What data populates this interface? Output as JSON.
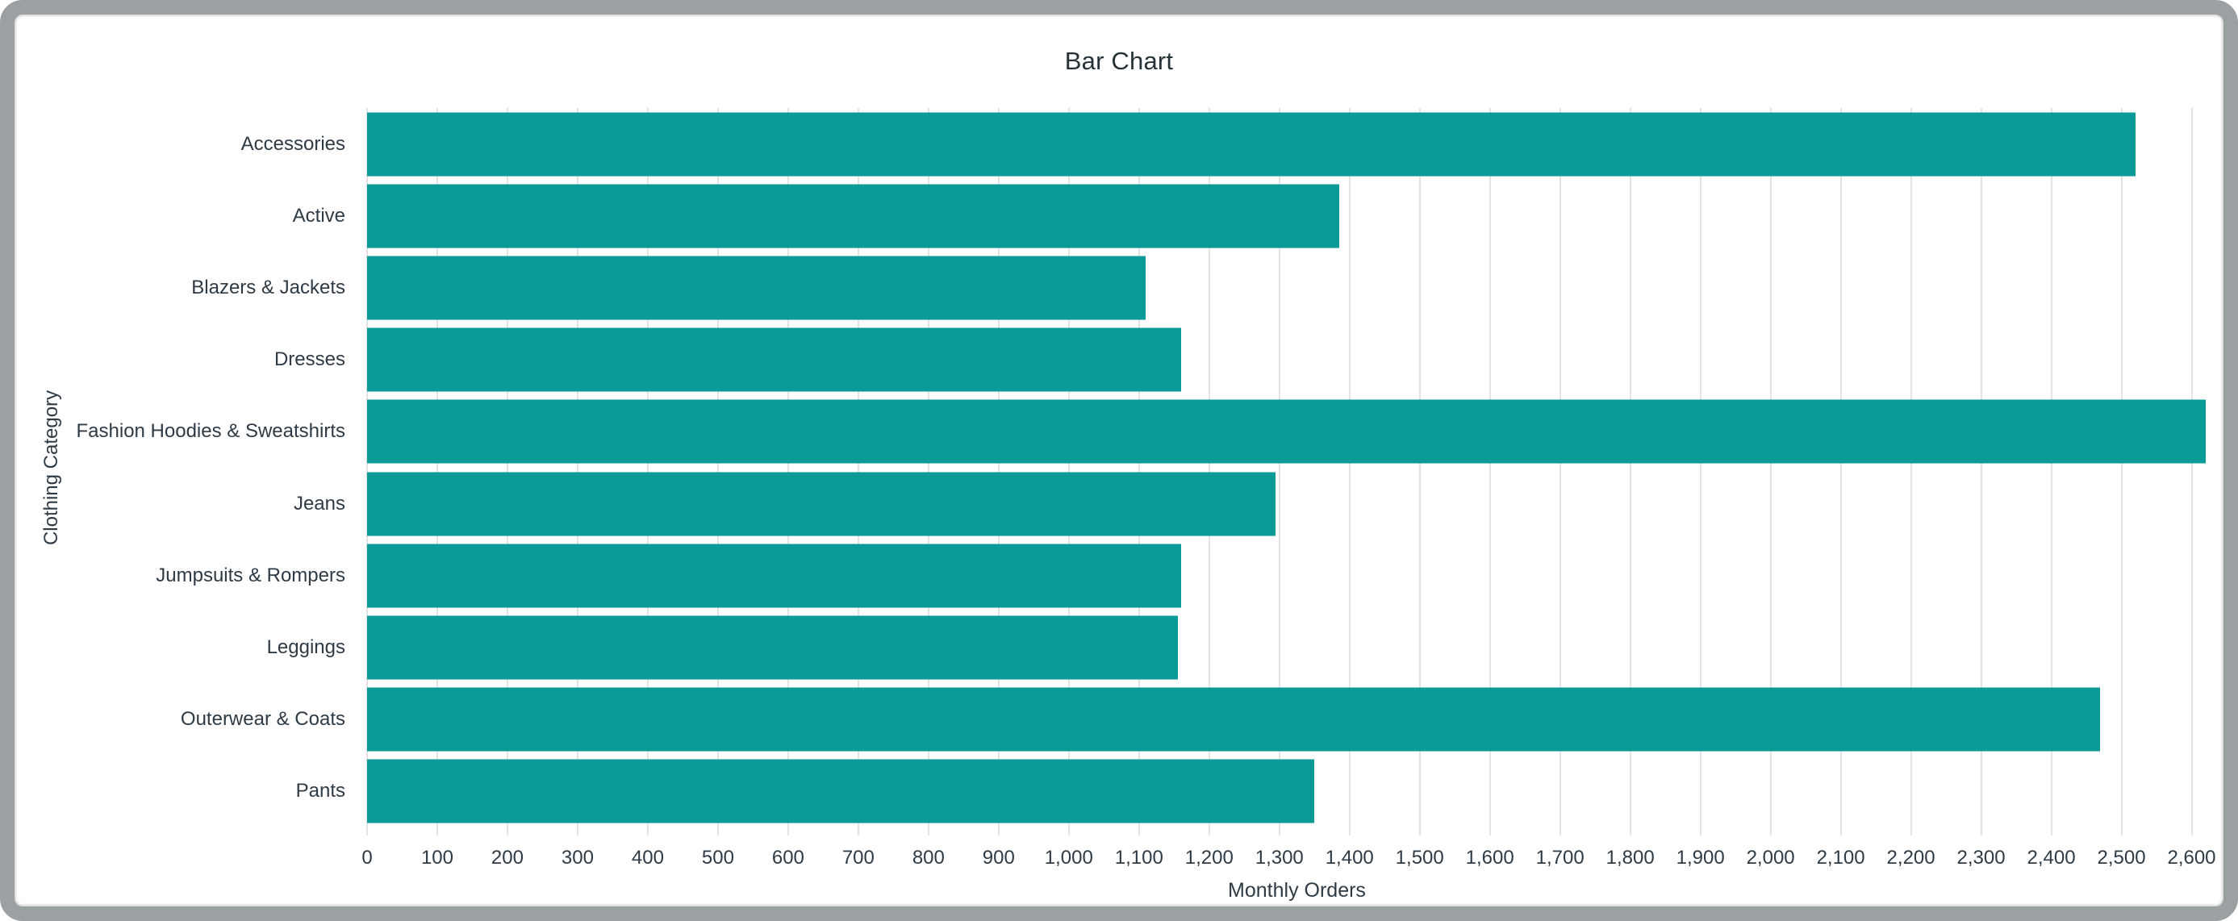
{
  "window": {
    "frame_color": "#9ba0a3",
    "background": "#ffffff"
  },
  "title": "Bar Chart",
  "chart_data": {
    "type": "bar",
    "orientation": "horizontal",
    "title": "Bar Chart",
    "xlabel": "Monthly Orders",
    "ylabel": "Clothing Category",
    "categories": [
      "Accessories",
      "Active",
      "Blazers & Jackets",
      "Dresses",
      "Fashion Hoodies & Sweatshirts",
      "Jeans",
      "Jumpsuits & Rompers",
      "Leggings",
      "Outerwear & Coats",
      "Pants"
    ],
    "values": [
      2520,
      1385,
      1110,
      1160,
      2620,
      1295,
      1160,
      1155,
      2470,
      1350
    ],
    "xlim": [
      0,
      2650
    ],
    "xtick_step": 100,
    "xtick_max": 2600,
    "xtick_label_format": "thousands-comma",
    "grid": true,
    "legend": "none",
    "bar_color": "#0a9b98",
    "gridline_color": "#e3e3e3",
    "text_color": "#2e3a45",
    "title_color": "#263238"
  }
}
